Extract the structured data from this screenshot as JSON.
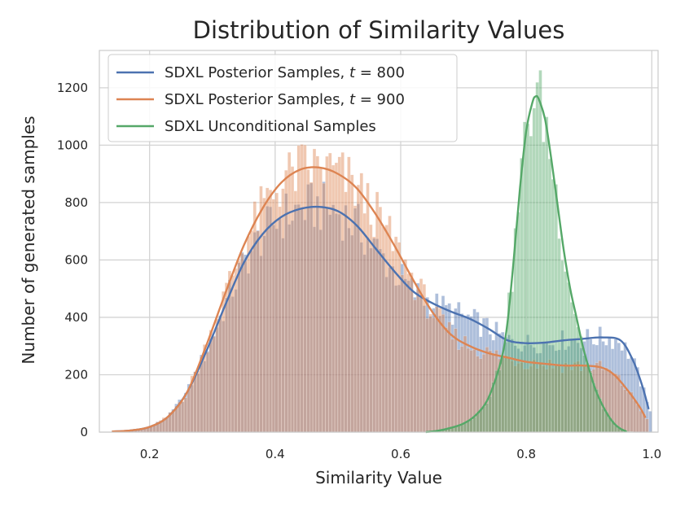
{
  "chart_data": {
    "type": "histogram",
    "title": "Distribution of Similarity Values",
    "xlabel": "Similarity Value",
    "ylabel": "Number of generated samples",
    "xlim": [
      0.12,
      1.01
    ],
    "ylim": [
      0,
      1330
    ],
    "xticks": [
      0.2,
      0.4,
      0.6,
      0.8,
      1.0
    ],
    "xtick_labels": [
      "0.2",
      "0.4",
      "0.6",
      "0.8",
      "1.0"
    ],
    "yticks": [
      0,
      200,
      400,
      600,
      800,
      1000,
      1200
    ],
    "ytick_labels": [
      "0",
      "200",
      "400",
      "600",
      "800",
      "1000",
      "1200"
    ],
    "grid": true,
    "legend_position": "top-left",
    "bin_width": 0.005,
    "series": [
      {
        "name": "SDXL Posterior Samples, t = 800",
        "legend_prefix": "SDXL Posterior Samples, ",
        "legend_var": "t",
        "legend_suffix": " = 800",
        "color": "#4c72b0",
        "range": [
          0.14,
          1.0
        ],
        "kde": [
          [
            0.14,
            2
          ],
          [
            0.17,
            6
          ],
          [
            0.2,
            18
          ],
          [
            0.23,
            55
          ],
          [
            0.26,
            140
          ],
          [
            0.29,
            280
          ],
          [
            0.32,
            440
          ],
          [
            0.35,
            590
          ],
          [
            0.38,
            690
          ],
          [
            0.41,
            750
          ],
          [
            0.44,
            778
          ],
          [
            0.47,
            785
          ],
          [
            0.5,
            770
          ],
          [
            0.53,
            720
          ],
          [
            0.56,
            640
          ],
          [
            0.59,
            560
          ],
          [
            0.62,
            490
          ],
          [
            0.65,
            450
          ],
          [
            0.68,
            420
          ],
          [
            0.71,
            395
          ],
          [
            0.74,
            360
          ],
          [
            0.77,
            320
          ],
          [
            0.8,
            310
          ],
          [
            0.83,
            312
          ],
          [
            0.86,
            320
          ],
          [
            0.89,
            325
          ],
          [
            0.92,
            330
          ],
          [
            0.95,
            320
          ],
          [
            0.97,
            250
          ],
          [
            0.985,
            160
          ],
          [
            0.995,
            80
          ]
        ]
      },
      {
        "name": "SDXL Posterior Samples, t = 900",
        "legend_prefix": "SDXL Posterior Samples, ",
        "legend_var": "t",
        "legend_suffix": " = 900",
        "color": "#dd8452",
        "range": [
          0.14,
          0.995
        ],
        "kde": [
          [
            0.14,
            2
          ],
          [
            0.17,
            6
          ],
          [
            0.2,
            18
          ],
          [
            0.23,
            55
          ],
          [
            0.26,
            140
          ],
          [
            0.29,
            300
          ],
          [
            0.32,
            480
          ],
          [
            0.35,
            650
          ],
          [
            0.38,
            780
          ],
          [
            0.41,
            870
          ],
          [
            0.44,
            915
          ],
          [
            0.47,
            922
          ],
          [
            0.5,
            900
          ],
          [
            0.53,
            850
          ],
          [
            0.56,
            760
          ],
          [
            0.59,
            650
          ],
          [
            0.62,
            530
          ],
          [
            0.65,
            420
          ],
          [
            0.68,
            340
          ],
          [
            0.71,
            300
          ],
          [
            0.74,
            275
          ],
          [
            0.77,
            260
          ],
          [
            0.8,
            245
          ],
          [
            0.83,
            238
          ],
          [
            0.86,
            232
          ],
          [
            0.89,
            232
          ],
          [
            0.92,
            225
          ],
          [
            0.94,
            200
          ],
          [
            0.96,
            150
          ],
          [
            0.98,
            90
          ],
          [
            0.99,
            50
          ]
        ]
      },
      {
        "name": "SDXL Unconditional Samples",
        "legend_prefix": "SDXL Unconditional Samples",
        "legend_var": "",
        "legend_suffix": "",
        "color": "#55a868",
        "range": [
          0.64,
          0.97
        ],
        "kde": [
          [
            0.64,
            0
          ],
          [
            0.66,
            5
          ],
          [
            0.68,
            15
          ],
          [
            0.7,
            30
          ],
          [
            0.72,
            60
          ],
          [
            0.74,
            120
          ],
          [
            0.76,
            250
          ],
          [
            0.77,
            380
          ],
          [
            0.78,
            600
          ],
          [
            0.79,
            850
          ],
          [
            0.8,
            1050
          ],
          [
            0.81,
            1150
          ],
          [
            0.815,
            1170
          ],
          [
            0.82,
            1160
          ],
          [
            0.83,
            1090
          ],
          [
            0.84,
            950
          ],
          [
            0.85,
            790
          ],
          [
            0.86,
            630
          ],
          [
            0.87,
            500
          ],
          [
            0.88,
            400
          ],
          [
            0.89,
            300
          ],
          [
            0.9,
            220
          ],
          [
            0.91,
            150
          ],
          [
            0.92,
            100
          ],
          [
            0.93,
            60
          ],
          [
            0.94,
            30
          ],
          [
            0.95,
            12
          ],
          [
            0.96,
            2
          ]
        ]
      }
    ]
  }
}
